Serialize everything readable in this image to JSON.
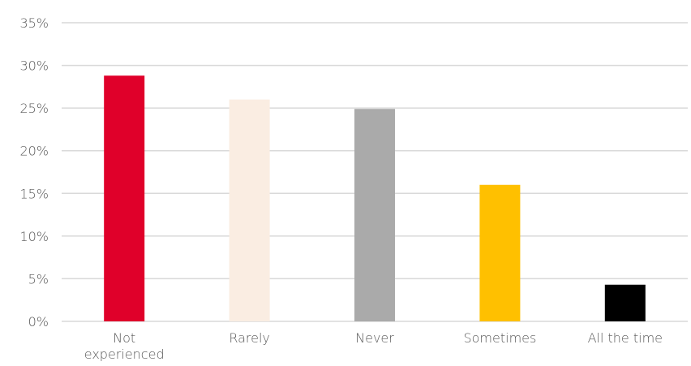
{
  "chart_data": {
    "type": "bar",
    "title": "",
    "xlabel": "",
    "ylabel": "",
    "categories": [
      [
        "Not",
        "experienced"
      ],
      [
        "Rarely"
      ],
      [
        "Never"
      ],
      [
        "Sometimes"
      ],
      [
        "All the time"
      ]
    ],
    "values": [
      28.8,
      26.0,
      24.9,
      16.0,
      4.3
    ],
    "colors": [
      "#e0002a",
      "#faede2",
      "#aaaaaa",
      "#ffc000",
      "#000000"
    ],
    "ylim": [
      0,
      35
    ],
    "yticks": [
      0,
      5,
      10,
      15,
      20,
      25,
      30,
      35
    ],
    "ytick_format": "percent",
    "grid": true,
    "legend": "none"
  }
}
